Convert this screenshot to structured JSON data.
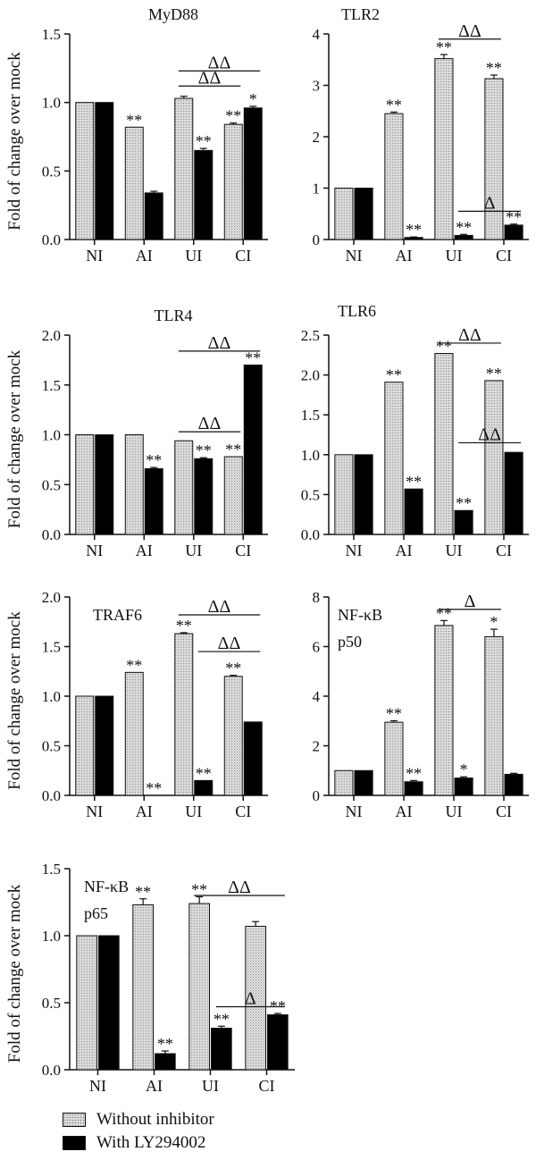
{
  "ylabel": "Fold of change over mock",
  "legend": [
    {
      "label": "Without inhibitor",
      "style": "dotted-gray"
    },
    {
      "label": "With LY294002",
      "style": "black"
    }
  ],
  "colors": {
    "without_inhibitor": "#d9d9d9",
    "with_inhibitor": "#000000",
    "axis": "#111111"
  },
  "chart_data": [
    {
      "type": "bar",
      "title": "MyD88",
      "title_sub": "",
      "categories": [
        "NI",
        "AI",
        "UI",
        "CI"
      ],
      "series": [
        {
          "name": "Without inhibitor",
          "values": [
            1.0,
            0.82,
            1.03,
            0.84
          ],
          "errors": [
            0,
            0,
            0.015,
            0.01
          ],
          "marks": [
            "",
            "**",
            "",
            "**"
          ]
        },
        {
          "name": "With LY294002",
          "values": [
            1.0,
            0.34,
            0.65,
            0.96
          ],
          "errors": [
            0,
            0.012,
            0.015,
            0.012
          ],
          "marks": [
            "",
            "",
            "**",
            "*"
          ]
        }
      ],
      "ylim": [
        0,
        1.5
      ],
      "yticks": [
        0.0,
        0.5,
        1.0,
        1.5
      ],
      "annotations": [
        {
          "text": "ΔΔ",
          "from": "UI.without",
          "to": "CI.with",
          "value": 1.23
        },
        {
          "text": "ΔΔ",
          "from": "UI.without",
          "to": "CI.without",
          "value": 1.12
        }
      ]
    },
    {
      "type": "bar",
      "title": "TLR2",
      "title_sub": "",
      "categories": [
        "NI",
        "AI",
        "UI",
        "CI"
      ],
      "series": [
        {
          "name": "Without inhibitor",
          "values": [
            1.0,
            2.45,
            3.52,
            3.13
          ],
          "errors": [
            0,
            0.03,
            0.08,
            0.07
          ],
          "marks": [
            "",
            "**",
            "**",
            "**"
          ]
        },
        {
          "name": "With LY294002",
          "values": [
            1.0,
            0.04,
            0.08,
            0.28
          ],
          "errors": [
            0,
            0.01,
            0.02,
            0.02
          ],
          "marks": [
            "",
            "**",
            "**",
            "**"
          ]
        }
      ],
      "ylim": [
        0,
        4
      ],
      "yticks": [
        0,
        1,
        2,
        3,
        4
      ],
      "annotations": [
        {
          "text": "ΔΔ",
          "from": "UI.without",
          "to": "CI.without",
          "value": 3.9
        },
        {
          "text": "Δ",
          "from": "UI.with",
          "to": "CI.with",
          "value": 0.55
        }
      ]
    },
    {
      "type": "bar",
      "title": "TLR4",
      "title_sub": "",
      "categories": [
        "NI",
        "AI",
        "UI",
        "CI"
      ],
      "series": [
        {
          "name": "Without inhibitor",
          "values": [
            1.0,
            1.0,
            0.94,
            0.78
          ],
          "errors": [
            0,
            0,
            0,
            0
          ],
          "marks": [
            "",
            "",
            "",
            "**"
          ]
        },
        {
          "name": "With LY294002",
          "values": [
            1.0,
            0.66,
            0.76,
            1.7
          ],
          "errors": [
            0,
            0.012,
            0.01,
            0
          ],
          "marks": [
            "",
            "**",
            "**",
            "**"
          ]
        }
      ],
      "ylim": [
        0,
        2.0
      ],
      "yticks": [
        0.0,
        0.5,
        1.0,
        1.5,
        2.0
      ],
      "annotations": [
        {
          "text": "ΔΔ",
          "from": "UI.without",
          "to": "CI.with",
          "value": 1.84
        },
        {
          "text": "ΔΔ",
          "from": "UI.without",
          "to": "CI.without",
          "value": 1.03
        }
      ]
    },
    {
      "type": "bar",
      "title": "TLR6",
      "title_sub": "",
      "categories": [
        "NI",
        "AI",
        "UI",
        "CI"
      ],
      "series": [
        {
          "name": "Without inhibitor",
          "values": [
            1.0,
            1.91,
            2.27,
            1.93
          ],
          "errors": [
            0,
            0,
            0,
            0
          ],
          "marks": [
            "",
            "**",
            "**",
            "**"
          ]
        },
        {
          "name": "With LY294002",
          "values": [
            1.0,
            0.57,
            0.3,
            1.03
          ],
          "errors": [
            0,
            0,
            0,
            0
          ],
          "marks": [
            "",
            "**",
            "**",
            ""
          ]
        }
      ],
      "ylim": [
        0,
        2.5
      ],
      "yticks": [
        0.0,
        0.5,
        1.0,
        1.5,
        2.0,
        2.5
      ],
      "annotations": [
        {
          "text": "ΔΔ",
          "from": "UI.without",
          "to": "CI.without",
          "value": 2.4
        },
        {
          "text": "ΔΔ",
          "from": "UI.with",
          "to": "CI.with",
          "value": 1.15
        }
      ]
    },
    {
      "type": "bar",
      "title": "TRAF6",
      "title_sub": "",
      "categories": [
        "NI",
        "AI",
        "UI",
        "CI"
      ],
      "series": [
        {
          "name": "Without inhibitor",
          "values": [
            1.0,
            1.24,
            1.63,
            1.2
          ],
          "errors": [
            0,
            0,
            0.01,
            0.01
          ],
          "marks": [
            "",
            "**",
            "**",
            "**"
          ]
        },
        {
          "name": "With LY294002",
          "values": [
            1.0,
            0.0,
            0.15,
            0.74
          ],
          "errors": [
            0,
            0,
            0,
            0
          ],
          "marks": [
            "",
            "**",
            "**",
            ""
          ]
        }
      ],
      "ylim": [
        0,
        2.0
      ],
      "yticks": [
        0.0,
        0.5,
        1.0,
        1.5,
        2.0
      ],
      "annotations": [
        {
          "text": "ΔΔ",
          "from": "UI.without",
          "to": "CI.with",
          "value": 1.82
        },
        {
          "text": "ΔΔ",
          "from": "UI.with",
          "to": "CI.with",
          "value": 1.45
        }
      ]
    },
    {
      "type": "bar",
      "title": "NF-κB",
      "title_sub": "p50",
      "categories": [
        "NI",
        "AI",
        "UI",
        "CI"
      ],
      "series": [
        {
          "name": "Without inhibitor",
          "values": [
            1.0,
            2.95,
            6.85,
            6.4
          ],
          "errors": [
            0,
            0.06,
            0.2,
            0.3
          ],
          "marks": [
            "",
            "**",
            "**",
            "*"
          ]
        },
        {
          "name": "With LY294002",
          "values": [
            1.0,
            0.55,
            0.7,
            0.85
          ],
          "errors": [
            0,
            0.05,
            0.05,
            0.04
          ],
          "marks": [
            "",
            "**",
            "*",
            ""
          ]
        }
      ],
      "ylim": [
        0,
        8
      ],
      "yticks": [
        0,
        2,
        4,
        6,
        8
      ],
      "annotations": [
        {
          "text": "Δ",
          "from": "UI.without",
          "to": "CI.without",
          "value": 7.5
        }
      ]
    },
    {
      "type": "bar",
      "title": "NF-κB",
      "title_sub": "p65",
      "categories": [
        "NI",
        "AI",
        "UI",
        "CI"
      ],
      "series": [
        {
          "name": "Without inhibitor",
          "values": [
            1.0,
            1.23,
            1.24,
            1.07
          ],
          "errors": [
            0,
            0.045,
            0.05,
            0.035
          ],
          "marks": [
            "",
            "**",
            "**",
            ""
          ]
        },
        {
          "name": "With LY294002",
          "values": [
            1.0,
            0.12,
            0.31,
            0.41
          ],
          "errors": [
            0,
            0.02,
            0.015,
            0.01
          ],
          "marks": [
            "",
            "**",
            "**",
            "**"
          ]
        }
      ],
      "ylim": [
        0,
        1.5
      ],
      "yticks": [
        0.0,
        0.5,
        1.0,
        1.5
      ],
      "annotations": [
        {
          "text": "ΔΔ",
          "from": "UI.without",
          "to": "CI.with",
          "value": 1.3
        },
        {
          "text": "Δ",
          "from": "UI.with",
          "to": "CI.with",
          "value": 0.47
        }
      ]
    }
  ]
}
